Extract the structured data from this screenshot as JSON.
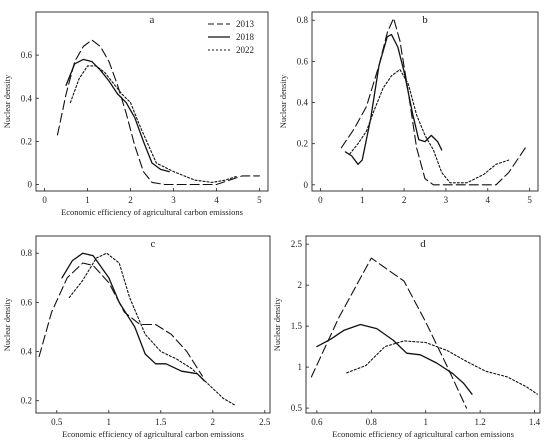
{
  "chart_data": [
    {
      "type": "line",
      "panel_label": "a",
      "xlabel": "Economic efficiency of agricultural carbon emissions",
      "ylabel": "Nuclear  density",
      "xlim": [
        -0.2,
        5.2
      ],
      "ylim": [
        -0.03,
        0.8
      ],
      "xticks": [
        0,
        1,
        2,
        3,
        4,
        5
      ],
      "yticks": [
        0,
        0.2,
        0.4,
        0.6
      ],
      "legend": {
        "placement": "top-right",
        "entries": [
          "2013",
          "2018",
          "2022"
        ]
      },
      "series": [
        {
          "name": "2013",
          "style": "dashed",
          "points": [
            [
              0.3,
              0.23
            ],
            [
              0.5,
              0.42
            ],
            [
              0.7,
              0.57
            ],
            [
              0.9,
              0.64
            ],
            [
              1.1,
              0.67
            ],
            [
              1.3,
              0.64
            ],
            [
              1.5,
              0.57
            ],
            [
              1.7,
              0.46
            ],
            [
              1.9,
              0.33
            ],
            [
              2.1,
              0.18
            ],
            [
              2.3,
              0.06
            ],
            [
              2.5,
              0.01
            ],
            [
              2.8,
              0.0
            ],
            [
              3.5,
              0.0
            ],
            [
              4.0,
              0.0
            ],
            [
              4.3,
              0.02
            ],
            [
              4.6,
              0.04
            ],
            [
              5.0,
              0.04
            ]
          ]
        },
        {
          "name": "2018",
          "style": "solid",
          "points": [
            [
              0.5,
              0.46
            ],
            [
              0.7,
              0.56
            ],
            [
              0.9,
              0.58
            ],
            [
              1.1,
              0.57
            ],
            [
              1.3,
              0.53
            ],
            [
              1.5,
              0.48
            ],
            [
              1.7,
              0.42
            ],
            [
              1.9,
              0.38
            ],
            [
              2.1,
              0.31
            ],
            [
              2.3,
              0.2
            ],
            [
              2.5,
              0.1
            ],
            [
              2.7,
              0.07
            ],
            [
              2.9,
              0.06
            ]
          ]
        },
        {
          "name": "2022",
          "style": "dotted",
          "points": [
            [
              0.6,
              0.38
            ],
            [
              0.8,
              0.49
            ],
            [
              1.0,
              0.55
            ],
            [
              1.2,
              0.55
            ],
            [
              1.4,
              0.52
            ],
            [
              1.6,
              0.47
            ],
            [
              1.8,
              0.42
            ],
            [
              2.0,
              0.38
            ],
            [
              2.2,
              0.28
            ],
            [
              2.4,
              0.19
            ],
            [
              2.6,
              0.1
            ],
            [
              2.8,
              0.08
            ],
            [
              3.0,
              0.06
            ],
            [
              3.5,
              0.02
            ],
            [
              3.9,
              0.01
            ],
            [
              4.2,
              0.02
            ],
            [
              4.5,
              0.04
            ]
          ]
        }
      ]
    },
    {
      "type": "line",
      "panel_label": "b",
      "xlabel": "",
      "ylabel": "Nuclear  density",
      "xlim": [
        -0.2,
        5.2
      ],
      "ylim": [
        -0.03,
        0.84
      ],
      "xticks": [
        0,
        1,
        2,
        3,
        4,
        5
      ],
      "yticks": [
        0,
        0.2,
        0.4,
        0.6,
        0.8
      ],
      "series": [
        {
          "name": "2013",
          "style": "dashed",
          "points": [
            [
              0.5,
              0.18
            ],
            [
              0.8,
              0.27
            ],
            [
              1.1,
              0.38
            ],
            [
              1.4,
              0.58
            ],
            [
              1.6,
              0.74
            ],
            [
              1.75,
              0.81
            ],
            [
              1.9,
              0.7
            ],
            [
              2.1,
              0.45
            ],
            [
              2.3,
              0.18
            ],
            [
              2.5,
              0.03
            ],
            [
              2.7,
              0.0
            ],
            [
              3.5,
              0.0
            ],
            [
              4.2,
              0.0
            ],
            [
              4.5,
              0.06
            ],
            [
              4.9,
              0.18
            ]
          ]
        },
        {
          "name": "2018",
          "style": "solid",
          "points": [
            [
              0.6,
              0.16
            ],
            [
              0.75,
              0.14
            ],
            [
              0.9,
              0.1
            ],
            [
              1.0,
              0.12
            ],
            [
              1.2,
              0.32
            ],
            [
              1.4,
              0.58
            ],
            [
              1.6,
              0.72
            ],
            [
              1.7,
              0.73
            ],
            [
              1.85,
              0.67
            ],
            [
              2.0,
              0.55
            ],
            [
              2.2,
              0.35
            ],
            [
              2.35,
              0.22
            ],
            [
              2.5,
              0.21
            ],
            [
              2.65,
              0.24
            ],
            [
              2.8,
              0.21
            ],
            [
              2.9,
              0.17
            ]
          ]
        },
        {
          "name": "2022",
          "style": "dotted",
          "points": [
            [
              0.7,
              0.15
            ],
            [
              0.9,
              0.2
            ],
            [
              1.1,
              0.26
            ],
            [
              1.3,
              0.37
            ],
            [
              1.5,
              0.47
            ],
            [
              1.7,
              0.53
            ],
            [
              1.9,
              0.56
            ],
            [
              2.1,
              0.49
            ],
            [
              2.3,
              0.34
            ],
            [
              2.5,
              0.24
            ],
            [
              2.7,
              0.17
            ],
            [
              2.9,
              0.06
            ],
            [
              3.1,
              0.01
            ],
            [
              3.5,
              0.01
            ],
            [
              3.9,
              0.05
            ],
            [
              4.2,
              0.1
            ],
            [
              4.5,
              0.12
            ]
          ]
        }
      ]
    },
    {
      "type": "line",
      "panel_label": "c",
      "xlabel": "Economic efficiency of agricultural carbon emissions",
      "ylabel": "Nuclear  density",
      "xlim": [
        0.3,
        2.55
      ],
      "ylim": [
        0.15,
        0.87
      ],
      "xticks": [
        0.5,
        1,
        1.5,
        2,
        2.5
      ],
      "yticks": [
        0.2,
        0.4,
        0.6,
        0.8
      ],
      "series": [
        {
          "name": "2013",
          "style": "dashed",
          "points": [
            [
              0.33,
              0.38
            ],
            [
              0.45,
              0.56
            ],
            [
              0.6,
              0.7
            ],
            [
              0.75,
              0.76
            ],
            [
              0.85,
              0.75
            ],
            [
              1.0,
              0.68
            ],
            [
              1.15,
              0.56
            ],
            [
              1.3,
              0.51
            ],
            [
              1.45,
              0.51
            ],
            [
              1.6,
              0.47
            ],
            [
              1.75,
              0.4
            ],
            [
              1.9,
              0.3
            ]
          ]
        },
        {
          "name": "2018",
          "style": "solid",
          "points": [
            [
              0.55,
              0.7
            ],
            [
              0.65,
              0.77
            ],
            [
              0.75,
              0.8
            ],
            [
              0.85,
              0.79
            ],
            [
              1.0,
              0.7
            ],
            [
              1.1,
              0.6
            ],
            [
              1.25,
              0.5
            ],
            [
              1.35,
              0.39
            ],
            [
              1.45,
              0.35
            ],
            [
              1.55,
              0.35
            ],
            [
              1.7,
              0.32
            ],
            [
              1.85,
              0.31
            ],
            [
              1.92,
              0.28
            ]
          ]
        },
        {
          "name": "2022",
          "style": "dotted",
          "points": [
            [
              0.62,
              0.62
            ],
            [
              0.75,
              0.69
            ],
            [
              0.88,
              0.78
            ],
            [
              0.98,
              0.8
            ],
            [
              1.1,
              0.76
            ],
            [
              1.2,
              0.62
            ],
            [
              1.35,
              0.47
            ],
            [
              1.5,
              0.4
            ],
            [
              1.65,
              0.37
            ],
            [
              1.8,
              0.33
            ],
            [
              1.95,
              0.27
            ],
            [
              2.1,
              0.21
            ],
            [
              2.22,
              0.18
            ]
          ]
        }
      ]
    },
    {
      "type": "line",
      "panel_label": "d",
      "xlabel": "Economic efficiency of agricultural carbon emissions",
      "ylabel": "Nuclear  density",
      "xlim": [
        0.56,
        1.42
      ],
      "ylim": [
        0.44,
        2.6
      ],
      "xticks": [
        0.6,
        0.8,
        1,
        1.2,
        1.4
      ],
      "yticks": [
        0.5,
        1,
        1.5,
        2,
        2.5
      ],
      "series": [
        {
          "name": "2013",
          "style": "dashed",
          "points": [
            [
              0.58,
              0.88
            ],
            [
              0.68,
              1.6
            ],
            [
              0.8,
              2.33
            ],
            [
              0.92,
              2.05
            ],
            [
              1.0,
              1.55
            ],
            [
              1.08,
              1.0
            ],
            [
              1.15,
              0.5
            ]
          ]
        },
        {
          "name": "2018",
          "style": "solid",
          "points": [
            [
              0.6,
              1.25
            ],
            [
              0.65,
              1.34
            ],
            [
              0.7,
              1.45
            ],
            [
              0.76,
              1.52
            ],
            [
              0.82,
              1.47
            ],
            [
              0.88,
              1.33
            ],
            [
              0.93,
              1.17
            ],
            [
              0.98,
              1.15
            ],
            [
              1.04,
              1.05
            ],
            [
              1.1,
              0.92
            ],
            [
              1.14,
              0.8
            ],
            [
              1.17,
              0.67
            ]
          ]
        },
        {
          "name": "2022",
          "style": "dotted",
          "points": [
            [
              0.71,
              0.93
            ],
            [
              0.78,
              1.02
            ],
            [
              0.85,
              1.25
            ],
            [
              0.92,
              1.32
            ],
            [
              1.0,
              1.3
            ],
            [
              1.08,
              1.2
            ],
            [
              1.15,
              1.07
            ],
            [
              1.22,
              0.95
            ],
            [
              1.3,
              0.88
            ],
            [
              1.37,
              0.76
            ],
            [
              1.41,
              0.67
            ]
          ]
        }
      ]
    }
  ]
}
